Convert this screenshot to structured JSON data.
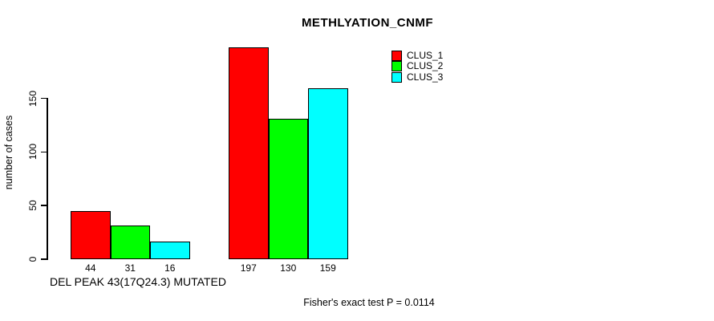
{
  "chart_data": {
    "type": "bar",
    "title": "METHLYATION_CNMF",
    "xlabel": "DEL PEAK 43(17Q24.3) MUTATED",
    "ylabel": "number of cases",
    "footer": "Fisher's exact test P = 0.0114",
    "yticks": [
      0,
      50,
      100,
      150
    ],
    "ylim": [
      0,
      197
    ],
    "grid": false,
    "legend_position": "top-right",
    "series": [
      {
        "name": "CLUS_1",
        "color": "#ff0000",
        "values": [
          44,
          197
        ]
      },
      {
        "name": "CLUS_2",
        "color": "#00ff00",
        "values": [
          31,
          130
        ]
      },
      {
        "name": "CLUS_3",
        "color": "#00ffff",
        "values": [
          16,
          159
        ]
      }
    ],
    "bar_value_labels": [
      [
        "44",
        "197"
      ],
      [
        "31",
        "130"
      ],
      [
        "16",
        "159"
      ]
    ],
    "colors": {
      "axis": "#000000",
      "text": "#000000",
      "background": "#ffffff"
    }
  }
}
